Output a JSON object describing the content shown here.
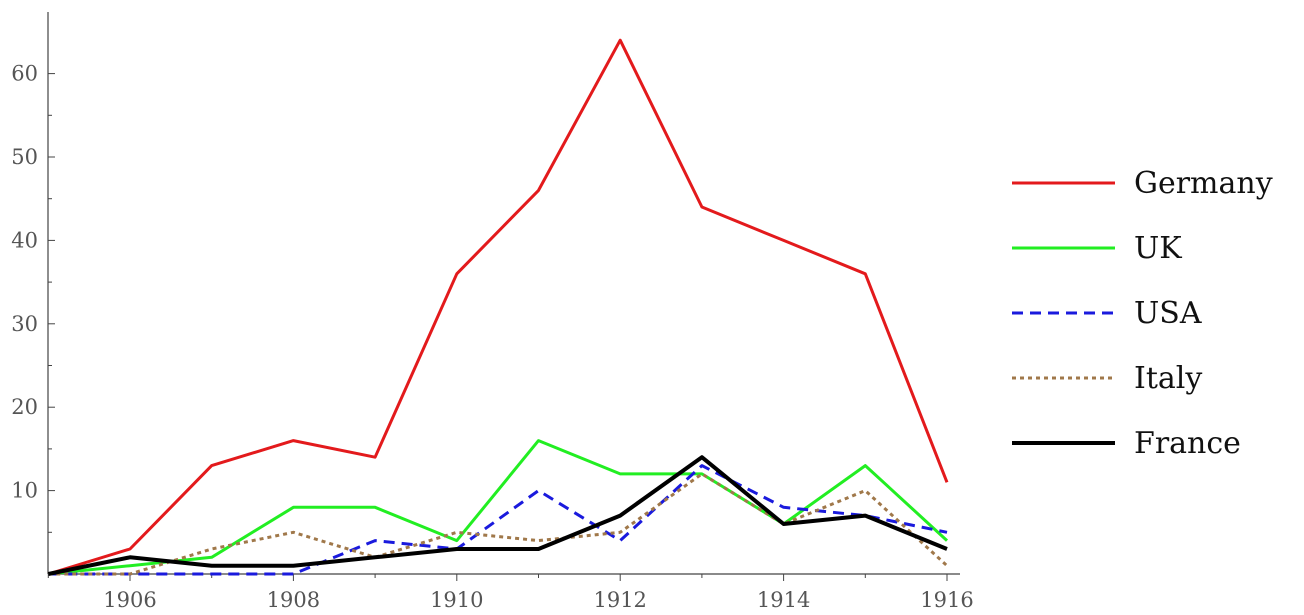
{
  "chart_data": {
    "type": "line",
    "title": "",
    "xlabel": "",
    "ylabel": "",
    "x": [
      1905,
      1906,
      1907,
      1908,
      1909,
      1910,
      1911,
      1912,
      1913,
      1914,
      1915,
      1916
    ],
    "xlim": [
      1905,
      1916.2
    ],
    "ylim": [
      0,
      65
    ],
    "x_ticks": [
      "1906",
      "1908",
      "1910",
      "1912",
      "1914",
      "1916"
    ],
    "y_ticks": [
      "10",
      "20",
      "30",
      "40",
      "50",
      "60"
    ],
    "grid": false,
    "legend_position": "right",
    "series": [
      {
        "name": "Germany",
        "color": "#e31a1c",
        "dash": "solid",
        "values": [
          0,
          3,
          13,
          16,
          14,
          36,
          46,
          64,
          44,
          40,
          36,
          11
        ]
      },
      {
        "name": "UK",
        "color": "#22ee22",
        "dash": "solid",
        "values": [
          0,
          1,
          2,
          8,
          8,
          4,
          16,
          12,
          12,
          6,
          13,
          4
        ]
      },
      {
        "name": "USA",
        "color": "#1a1add",
        "dash": "dashed",
        "values": [
          0,
          0,
          0,
          0,
          4,
          3,
          10,
          4,
          13,
          8,
          7,
          5
        ]
      },
      {
        "name": "Italy",
        "color": "#a0784a",
        "dash": "dotted",
        "values": [
          0,
          0,
          3,
          5,
          2,
          5,
          4,
          5,
          12,
          6,
          10,
          1
        ]
      },
      {
        "name": "France",
        "color": "#000000",
        "dash": "solid",
        "values": [
          0,
          2,
          1,
          1,
          2,
          3,
          3,
          7,
          14,
          6,
          7,
          3
        ]
      }
    ]
  }
}
